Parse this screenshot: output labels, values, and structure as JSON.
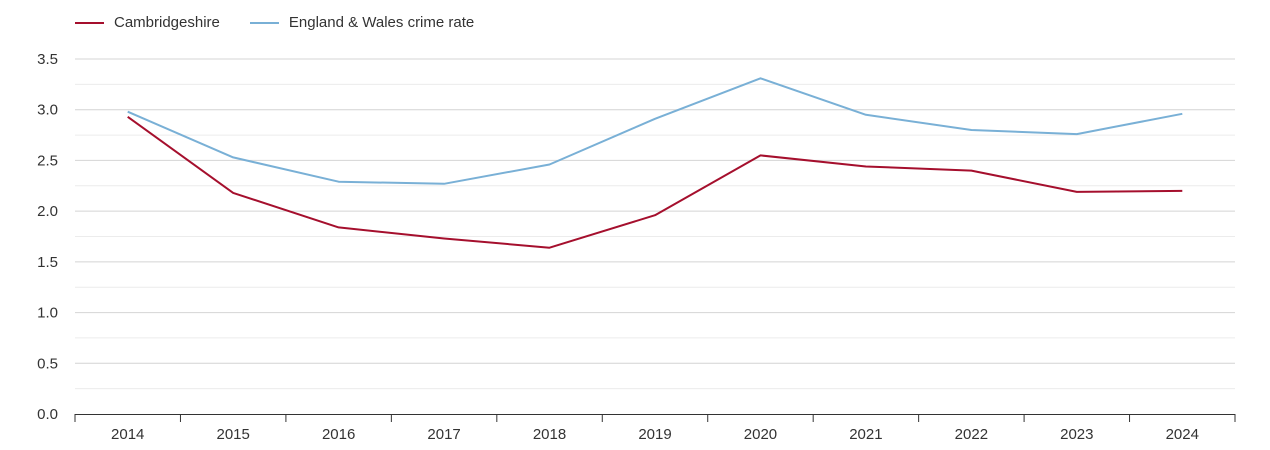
{
  "chart_data": {
    "type": "line",
    "title": "",
    "xlabel": "",
    "ylabel": "",
    "categories": [
      "2014",
      "2015",
      "2016",
      "2017",
      "2018",
      "2019",
      "2020",
      "2021",
      "2022",
      "2023",
      "2024"
    ],
    "ylim": [
      0,
      3.5
    ],
    "yticks": [
      "0.0",
      "0.5",
      "1.0",
      "1.5",
      "2.0",
      "2.5",
      "3.0",
      "3.5"
    ],
    "grid": true,
    "legend_position": "top-left",
    "series": [
      {
        "name": "Cambridgeshire",
        "color": "#a50f2d",
        "values": [
          2.93,
          2.18,
          1.84,
          1.73,
          1.64,
          1.96,
          2.55,
          2.44,
          2.4,
          2.19,
          2.2
        ]
      },
      {
        "name": "England & Wales crime rate",
        "color": "#79b0d6",
        "values": [
          2.98,
          2.53,
          2.29,
          2.27,
          2.46,
          2.91,
          3.31,
          2.95,
          2.8,
          2.76,
          2.96
        ]
      }
    ]
  }
}
